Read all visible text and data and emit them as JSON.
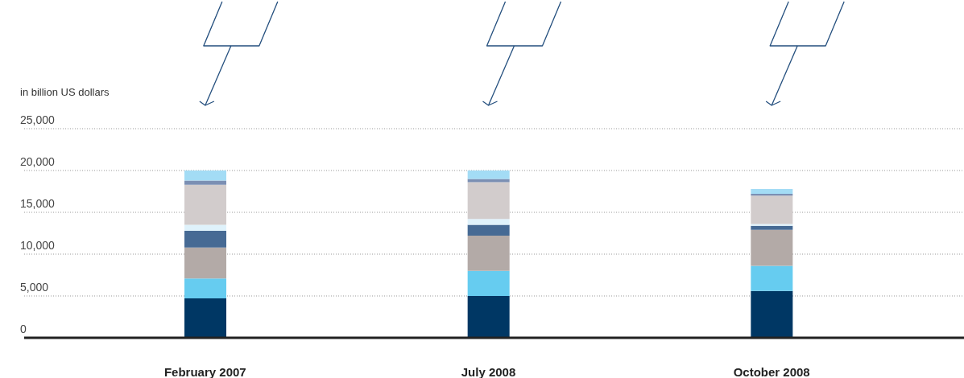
{
  "chart_data": {
    "type": "bar",
    "stacked": true,
    "ylabel": "in billion US dollars",
    "categories": [
      "February 2007",
      "July 2008",
      "October 2008"
    ],
    "series": [
      {
        "color": "#003764",
        "values": [
          4700,
          5000,
          5600
        ]
      },
      {
        "color": "#66ccf0",
        "values": [
          2400,
          3000,
          3000
        ]
      },
      {
        "color": "#b3aaa7",
        "values": [
          3700,
          4200,
          4300
        ]
      },
      {
        "color": "#466a94",
        "values": [
          2000,
          1300,
          500
        ]
      },
      {
        "color": "#dff2fb",
        "values": [
          700,
          700,
          200
        ]
      },
      {
        "color": "#d2cccc",
        "values": [
          4800,
          4400,
          3400
        ]
      },
      {
        "color": "#7b8fb3",
        "values": [
          500,
          400,
          200
        ]
      },
      {
        "color": "#a3dcf5",
        "values": [
          1200,
          1000,
          600
        ]
      }
    ],
    "ylim": [
      0,
      25000
    ],
    "yticks": [
      0,
      {
        "value": 5000,
        "label": "5,000"
      },
      {
        "value": 10000,
        "label": "10,000"
      },
      {
        "value": 15000,
        "label": "15,000"
      },
      {
        "value": 20000,
        "label": "20,000"
      },
      {
        "value": 25000,
        "label": "25,000"
      }
    ],
    "grid": "y",
    "legend": false
  }
}
